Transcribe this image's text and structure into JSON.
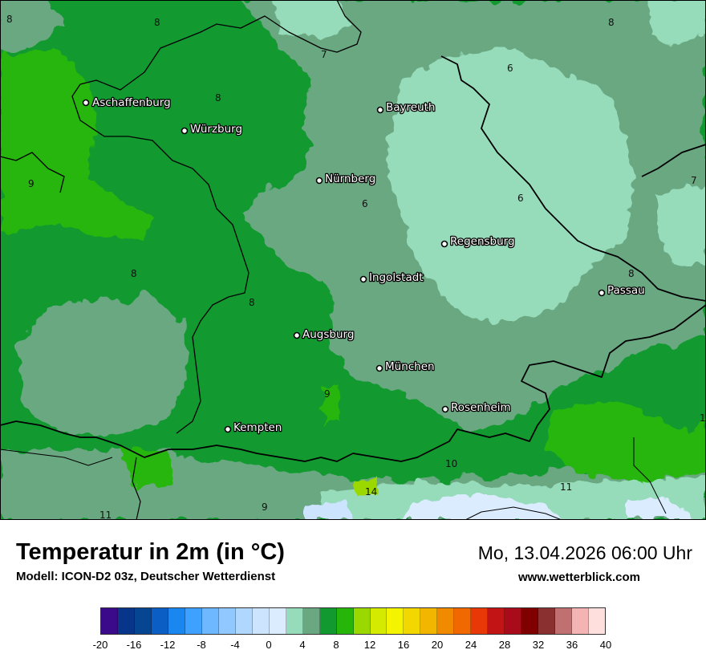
{
  "title": "Temperatur in 2m (in °C)",
  "model": "Modell: ICON-D2 03z, Deutscher Wetterdienst",
  "datetime": "Mo, 13.04.2026 06:00 Uhr",
  "website": "www.wetterblick.com",
  "cities": [
    {
      "id": "aschaffenburg",
      "name": "Aschaffenburg"
    },
    {
      "id": "wuerzburg",
      "name": "Würzburg"
    },
    {
      "id": "bayreuth",
      "name": "Bayreuth"
    },
    {
      "id": "nuernberg",
      "name": "Nürnberg"
    },
    {
      "id": "regensburg",
      "name": "Regensburg"
    },
    {
      "id": "ingolstadt",
      "name": "Ingolstadt"
    },
    {
      "id": "passau",
      "name": "Passau"
    },
    {
      "id": "augsburg",
      "name": "Augsburg"
    },
    {
      "id": "muenchen",
      "name": "München"
    },
    {
      "id": "rosenheim",
      "name": "Rosenheim"
    },
    {
      "id": "kempten",
      "name": "Kempten"
    }
  ],
  "isotherm_labels": [
    "8",
    "8",
    "7",
    "8",
    "6",
    "8",
    "9",
    "6",
    "7",
    "6",
    "8",
    "8",
    "8",
    "9",
    "10",
    "14",
    "11",
    "11",
    "9",
    "1"
  ],
  "legend": {
    "min": -20,
    "max": 40,
    "step": 2,
    "tick_labels": [
      "-20",
      "-16",
      "-12",
      "-8",
      "-4",
      "0",
      "4",
      "8",
      "12",
      "16",
      "20",
      "24",
      "28",
      "32",
      "36",
      "40"
    ],
    "colors": [
      "#3a0a8a",
      "#06358a",
      "#064592",
      "#0a5ec4",
      "#1a87f0",
      "#3ea0ff",
      "#6db8ff",
      "#90c8ff",
      "#b0d8ff",
      "#cde4ff",
      "#dcecff",
      "#96dcba",
      "#6aa882",
      "#129a30",
      "#26b60a",
      "#9ad800",
      "#d4ea00",
      "#f4f400",
      "#f2d800",
      "#f2b600",
      "#f28a00",
      "#f26800",
      "#e83808",
      "#c21414",
      "#a80c1a",
      "#800000",
      "#8a3030",
      "#c07070",
      "#f4b4b4",
      "#ffdede"
    ]
  }
}
